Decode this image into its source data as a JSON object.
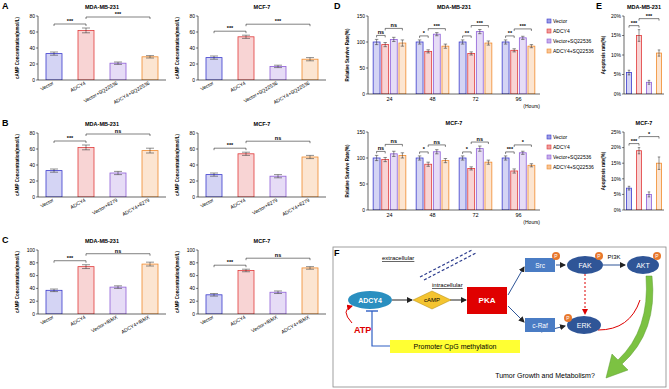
{
  "panel_labels": [
    "A",
    "B",
    "C",
    "D",
    "E",
    "F"
  ],
  "chart_data": [
    {
      "type": "bar",
      "title": "MDA-MB-231",
      "ylabel": "cAMP Concentration(nmol/L)",
      "categories": [
        "Vector",
        "ADCY4",
        "Vector+SQ22536",
        "ADCY4+SQ22536"
      ],
      "values": [
        33,
        62,
        21,
        29
      ],
      "errors": [
        2,
        3,
        1.5,
        1.5
      ],
      "colors": [
        "#3b3bcc",
        "#e03a3a",
        "#8e5ed8",
        "#f08a2c"
      ],
      "ylim": [
        0,
        80
      ],
      "yticks": [
        0,
        20,
        40,
        60,
        80
      ],
      "annotations": [
        {
          "text": "***",
          "from": 0,
          "to": 1
        },
        {
          "text": "***",
          "from": 1,
          "to": 3
        }
      ]
    },
    {
      "type": "bar",
      "title": "MCF-7",
      "ylabel": "cAMP Concentration(nmol/L)",
      "categories": [
        "Vector",
        "ADCY4",
        "Vector+SQ22536",
        "ADCY4+SQ22536"
      ],
      "values": [
        28,
        54,
        17,
        26
      ],
      "errors": [
        2,
        2,
        1.5,
        2
      ],
      "colors": [
        "#3b3bcc",
        "#e03a3a",
        "#8e5ed8",
        "#f08a2c"
      ],
      "ylim": [
        0,
        80
      ],
      "yticks": [
        0,
        20,
        40,
        60,
        80
      ],
      "annotations": [
        {
          "text": "***",
          "from": 0,
          "to": 1
        },
        {
          "text": "***",
          "from": 1,
          "to": 3
        }
      ]
    },
    {
      "type": "bar",
      "title": "MDA-MB-231",
      "ylabel": "cAMP Concentration(nmol/L)",
      "categories": [
        "Vector",
        "ADCY4",
        "Vector+8279",
        "ADCY4+8279"
      ],
      "values": [
        33,
        62,
        30,
        58
      ],
      "errors": [
        2,
        3,
        2,
        3
      ],
      "colors": [
        "#3b3bcc",
        "#e03a3a",
        "#8e5ed8",
        "#f08a2c"
      ],
      "ylim": [
        0,
        80
      ],
      "yticks": [
        0,
        20,
        40,
        60,
        80
      ],
      "annotations": [
        {
          "text": "***",
          "from": 0,
          "to": 1
        },
        {
          "text": "ns",
          "from": 1,
          "to": 3
        }
      ]
    },
    {
      "type": "bar",
      "title": "MCF-7",
      "ylabel": "cAMP Concentration(nmol/L)",
      "categories": [
        "Vector",
        "ADCY4",
        "Vector+8279",
        "ADCY4+8279"
      ],
      "values": [
        28,
        54,
        26,
        50
      ],
      "errors": [
        2,
        2,
        2,
        2
      ],
      "colors": [
        "#3b3bcc",
        "#e03a3a",
        "#8e5ed8",
        "#f08a2c"
      ],
      "ylim": [
        0,
        80
      ],
      "yticks": [
        0,
        20,
        40,
        60,
        80
      ],
      "annotations": [
        {
          "text": "***",
          "from": 0,
          "to": 1
        },
        {
          "text": "ns",
          "from": 1,
          "to": 3
        }
      ]
    },
    {
      "type": "bar",
      "title": "MDA-MB-231",
      "ylabel": "cAMP Concentration(nmol/L)",
      "categories": [
        "Vector",
        "ADCY4",
        "Vector+IBMX",
        "ADCY4+IBMX"
      ],
      "values": [
        37,
        74,
        42,
        78
      ],
      "errors": [
        2,
        3,
        2,
        3
      ],
      "colors": [
        "#3b3bcc",
        "#e03a3a",
        "#8e5ed8",
        "#f08a2c"
      ],
      "ylim": [
        0,
        100
      ],
      "yticks": [
        0,
        20,
        40,
        60,
        80,
        100
      ],
      "annotations": [
        {
          "text": "***",
          "from": 0,
          "to": 1
        },
        {
          "text": "ns",
          "from": 1,
          "to": 3
        }
      ]
    },
    {
      "type": "bar",
      "title": "MCF-7",
      "ylabel": "cAMP Concentration(nmol/L)",
      "categories": [
        "Vector",
        "ADCY4",
        "Vector+IBMX",
        "ADCY4+IBMX"
      ],
      "values": [
        30,
        68,
        34,
        72
      ],
      "errors": [
        2,
        2,
        2,
        2
      ],
      "colors": [
        "#3b3bcc",
        "#e03a3a",
        "#8e5ed8",
        "#f08a2c"
      ],
      "ylim": [
        0,
        100
      ],
      "yticks": [
        0,
        20,
        40,
        60,
        80,
        100
      ],
      "annotations": [
        {
          "text": "***",
          "from": 0,
          "to": 1
        },
        {
          "text": "ns",
          "from": 1,
          "to": 3
        }
      ]
    },
    {
      "type": "bar",
      "title": "MDA-MB-231",
      "ylabel": "Relative Survive Rate(%)",
      "xlabel": "(Hours)",
      "categories": [
        "24",
        "48",
        "72",
        "96"
      ],
      "legend": "right",
      "series": [
        {
          "name": "Vector",
          "color": "#3b3bcc",
          "values": [
            100,
            100,
            100,
            100
          ],
          "errors": [
            5,
            4,
            4,
            4
          ]
        },
        {
          "name": "ADCY4",
          "color": "#e03a3a",
          "values": [
            95,
            82,
            78,
            84
          ],
          "errors": [
            4,
            3,
            3,
            3
          ]
        },
        {
          "name": "Vector+SQ22536",
          "color": "#8e5ed8",
          "values": [
            105,
            115,
            120,
            108
          ],
          "errors": [
            4,
            3,
            4,
            3
          ]
        },
        {
          "name": "ADCY4+SQ22536",
          "color": "#f08a2c",
          "values": [
            98,
            92,
            98,
            92
          ],
          "errors": [
            6,
            4,
            4,
            3
          ]
        }
      ],
      "ylim": [
        0,
        150
      ],
      "yticks": [
        0,
        50,
        100,
        150
      ],
      "annotations": [
        {
          "group": 0,
          "text": "ns",
          "from": 0,
          "to": 1
        },
        {
          "group": 0,
          "text": "ns",
          "from": 1,
          "to": 3
        },
        {
          "group": 1,
          "text": "*",
          "from": 0,
          "to": 1
        },
        {
          "group": 1,
          "text": "***",
          "from": 1,
          "to": 3
        },
        {
          "group": 2,
          "text": "**",
          "from": 0,
          "to": 1
        },
        {
          "group": 2,
          "text": "***",
          "from": 1,
          "to": 3
        },
        {
          "group": 3,
          "text": "**",
          "from": 0,
          "to": 1
        },
        {
          "group": 3,
          "text": "***",
          "from": 1,
          "to": 3
        }
      ]
    },
    {
      "type": "bar",
      "title": "MCF-7",
      "ylabel": "Relative Survive Rate(%)",
      "xlabel": "(Hours)",
      "categories": [
        "24",
        "48",
        "72",
        "96"
      ],
      "legend": "right",
      "series": [
        {
          "name": "Vector",
          "color": "#3b3bcc",
          "values": [
            100,
            100,
            100,
            100
          ],
          "errors": [
            5,
            4,
            4,
            4
          ]
        },
        {
          "name": "ADCY4",
          "color": "#e03a3a",
          "values": [
            97,
            88,
            80,
            75
          ],
          "errors": [
            4,
            4,
            3,
            4
          ]
        },
        {
          "name": "Vector+SQ22536",
          "color": "#8e5ed8",
          "values": [
            108,
            112,
            118,
            110
          ],
          "errors": [
            5,
            4,
            5,
            3
          ]
        },
        {
          "name": "ADCY4+SQ22536",
          "color": "#f08a2c",
          "values": [
            105,
            95,
            92,
            86
          ],
          "errors": [
            5,
            4,
            4,
            3
          ]
        }
      ],
      "ylim": [
        0,
        150
      ],
      "yticks": [
        0,
        50,
        100,
        150
      ],
      "annotations": [
        {
          "group": 0,
          "text": "ns",
          "from": 0,
          "to": 1
        },
        {
          "group": 0,
          "text": "ns",
          "from": 1,
          "to": 3
        },
        {
          "group": 1,
          "text": "*",
          "from": 0,
          "to": 1
        },
        {
          "group": 1,
          "text": "ns",
          "from": 1,
          "to": 3
        },
        {
          "group": 2,
          "text": "*",
          "from": 0,
          "to": 1
        },
        {
          "group": 2,
          "text": "ns",
          "from": 1,
          "to": 3
        },
        {
          "group": 3,
          "text": "***",
          "from": 0,
          "to": 1
        },
        {
          "group": 3,
          "text": "*",
          "from": 1,
          "to": 3
        }
      ]
    },
    {
      "type": "bar",
      "title": "MDA-MB-231",
      "ylabel": "Apoptosis rate(%)",
      "tick_labels": "y",
      "values": [
        5.5,
        15,
        3,
        10.5
      ],
      "errors": [
        0.6,
        1.5,
        0.5,
        0.8
      ],
      "colors": [
        "#3b3bcc",
        "#e03a3a",
        "#8e5ed8",
        "#f08a2c"
      ],
      "ylim": [
        0,
        20
      ],
      "yticks": [
        {
          "value": 0,
          "label": "0%"
        },
        {
          "value": 5,
          "label": "5%"
        },
        {
          "value": 10,
          "label": "10%"
        },
        {
          "value": 15,
          "label": "15%"
        },
        {
          "value": 20,
          "label": "20%"
        }
      ],
      "annotations": [
        {
          "text": "***",
          "from": 0,
          "to": 1
        },
        {
          "text": "***",
          "from": 1,
          "to": 3
        }
      ]
    },
    {
      "type": "bar",
      "title": "MCF-7",
      "ylabel": "Apoptosis rate(%)",
      "tick_labels": "y",
      "values": [
        7,
        19,
        5,
        15
      ],
      "errors": [
        0.6,
        1,
        0.8,
        2
      ],
      "colors": [
        "#3b3bcc",
        "#e03a3a",
        "#8e5ed8",
        "#f08a2c"
      ],
      "ylim": [
        0,
        25
      ],
      "yticks": [
        {
          "value": 0,
          "label": "0%"
        },
        {
          "value": 5,
          "label": "5%"
        },
        {
          "value": 10,
          "label": "10%"
        },
        {
          "value": 15,
          "label": "15%"
        },
        {
          "value": 20,
          "label": "20%"
        },
        {
          "value": 25,
          "label": "25%"
        }
      ],
      "annotations": [
        {
          "text": "***",
          "from": 0,
          "to": 1
        },
        {
          "text": "*",
          "from": 1,
          "to": 3
        }
      ]
    }
  ],
  "diagram": {
    "regions": [
      "extracellular",
      "intracellular"
    ],
    "nodes": {
      "adcy4": "ADCY4",
      "atp": "ATP",
      "camp": "cAMP",
      "pka": "PKA",
      "src": "Src",
      "craf": "c-Raf",
      "fak": "FAK",
      "akt": "AKT",
      "erk": "ERK",
      "pi3k": "PI3K",
      "phospho": "P",
      "methylation": "Promoter CpG methylation",
      "outcome": "Tumor Growth and Metabolism?"
    }
  }
}
